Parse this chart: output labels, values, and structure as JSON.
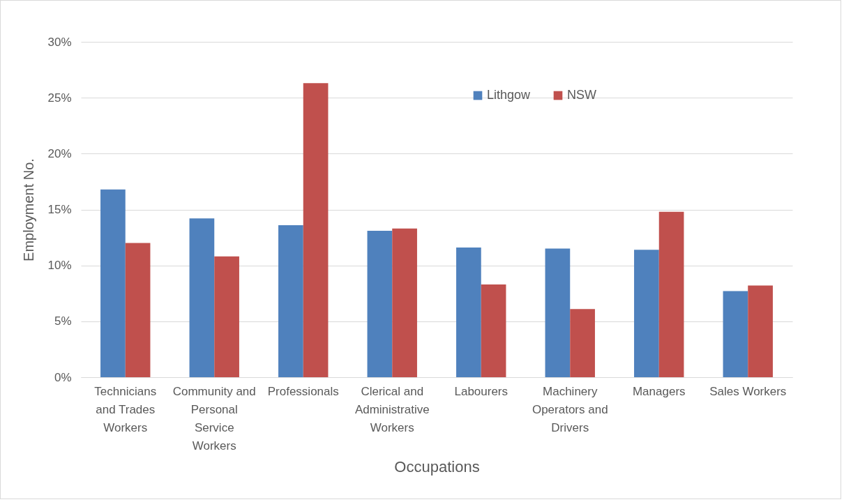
{
  "chart_data": {
    "type": "bar",
    "xlabel": "Occupations",
    "ylabel": "Employment No.",
    "categories": [
      "Technicians and Trades Workers",
      "Community and Personal Service Workers",
      "Professionals",
      "Clerical and Administrative Workers",
      "Labourers",
      "Machinery Operators and Drivers",
      "Managers",
      "Sales Workers"
    ],
    "series": [
      {
        "name": "Lithgow",
        "color": "#4f81bd",
        "values": [
          16.8,
          14.2,
          13.6,
          13.1,
          11.6,
          11.5,
          11.4,
          7.7
        ]
      },
      {
        "name": "NSW",
        "color": "#c0504d",
        "values": [
          12.0,
          10.8,
          26.3,
          13.3,
          8.3,
          6.1,
          14.8,
          8.2
        ]
      }
    ],
    "ylim": [
      0,
      30
    ],
    "yticks": [
      {
        "value": 0,
        "label": "0%"
      },
      {
        "value": 5,
        "label": "5%"
      },
      {
        "value": 10,
        "label": "10%"
      },
      {
        "value": 15,
        "label": "15%"
      },
      {
        "value": 20,
        "label": "20%"
      },
      {
        "value": 25,
        "label": "25%"
      },
      {
        "value": 30,
        "label": "30%"
      }
    ],
    "grid": "y",
    "legend": "top"
  }
}
